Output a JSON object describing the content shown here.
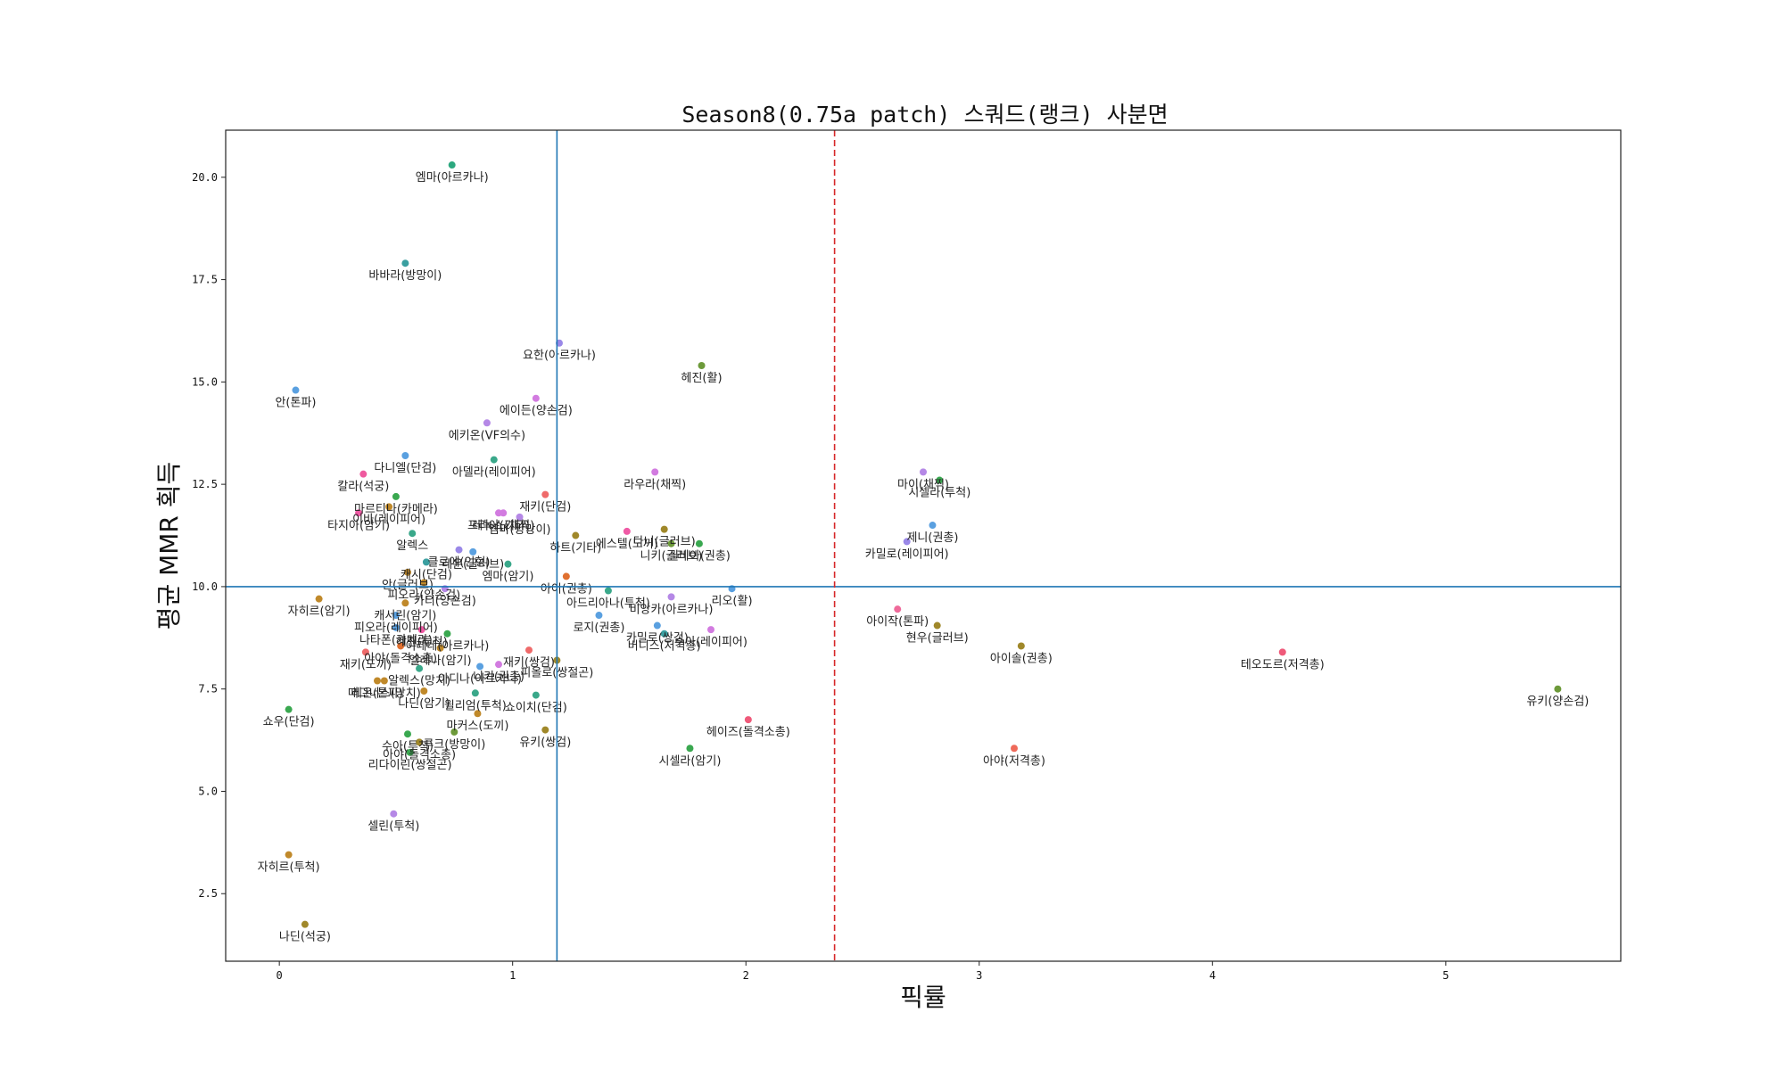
{
  "chart_data": {
    "type": "scatter",
    "title": "Season8(0.75a patch) 스쿼드(랭크) 사분면",
    "xlabel": "픽률",
    "ylabel": "평균 MMR 획득",
    "xlim": [
      -0.23,
      5.75
    ],
    "ylim": [
      0.85,
      21.15
    ],
    "xticks": [
      0,
      1,
      2,
      3,
      4,
      5
    ],
    "yticks": [
      2.5,
      5.0,
      7.5,
      10.0,
      12.5,
      15.0,
      17.5,
      20.0
    ],
    "xtick_labels": [
      "0",
      "1",
      "2",
      "3",
      "4",
      "5"
    ],
    "ytick_labels": [
      "2.5",
      "5.0",
      "7.5",
      "10.0",
      "12.5",
      "15.0",
      "17.5",
      "20.0"
    ],
    "grid": false,
    "reference_lines": {
      "mean_pick_rate_x": 1.19,
      "mean_mmr_y": 10.0,
      "high_pick_threshold_x": 2.38
    },
    "colors": {
      "mean_line": "#1f77b4",
      "threshold_line": "#d62728"
    },
    "points": [
      {
        "label": "엠마(아르카나)",
        "x": 0.74,
        "y": 20.3,
        "color": "#2ca87f"
      },
      {
        "label": "바바라(방망이)",
        "x": 0.54,
        "y": 17.9,
        "color": "#3a9fa0"
      },
      {
        "label": "요한(아르카나)",
        "x": 1.2,
        "y": 15.95,
        "color": "#9a88e8"
      },
      {
        "label": "헤진(활)",
        "x": 1.81,
        "y": 15.4,
        "color": "#6d9a3a"
      },
      {
        "label": "안(톤파)",
        "x": 0.07,
        "y": 14.8,
        "color": "#5aa0e0"
      },
      {
        "label": "에이든(양손검)",
        "x": 1.1,
        "y": 14.6,
        "color": "#d27be0"
      },
      {
        "label": "에키온(VF의수)",
        "x": 0.89,
        "y": 14.0,
        "color": "#b588e6"
      },
      {
        "label": "다니엘(단검)",
        "x": 0.54,
        "y": 13.2,
        "color": "#5aa0e0"
      },
      {
        "label": "아델라(레이피어)",
        "x": 0.92,
        "y": 13.1,
        "color": "#3aa88a"
      },
      {
        "label": "라우라(채찍)",
        "x": 1.61,
        "y": 12.8,
        "color": "#d27be0"
      },
      {
        "label": "칼라(석궁)",
        "x": 0.36,
        "y": 12.75,
        "color": "#ef5a9f"
      },
      {
        "label": "마이(채찍)",
        "x": 2.76,
        "y": 12.8,
        "color": "#b588e6"
      },
      {
        "label": "시셀라(투척)",
        "x": 2.83,
        "y": 12.6,
        "color": "#3aa850"
      },
      {
        "label": "마르티나(카메라)",
        "x": 0.5,
        "y": 12.2,
        "color": "#3aa850"
      },
      {
        "label": "재키(단검)",
        "x": 1.14,
        "y": 12.25,
        "color": "#ef6a6a"
      },
      {
        "label": "이바(레이피어)",
        "x": 0.47,
        "y": 11.95,
        "color": "#c0892a"
      },
      {
        "label": "타지아(암기)",
        "x": 0.34,
        "y": 11.8,
        "color": "#ef5aa5"
      },
      {
        "label": "알렉스",
        "x": 0.57,
        "y": 11.3,
        "color": "#3aa88a"
      },
      {
        "label": "프리야(기타)",
        "x": 0.94,
        "y": 11.8,
        "color": "#d27be0"
      },
      {
        "label": "레녹스(채찍)",
        "x": 0.96,
        "y": 11.8,
        "color": "#d27be0"
      },
      {
        "label": "엠마(방망이)",
        "x": 1.03,
        "y": 11.7,
        "color": "#b588e6"
      },
      {
        "label": "하트(기타)",
        "x": 1.27,
        "y": 11.25,
        "color": "#a0882a"
      },
      {
        "label": "에스텔(도끼)",
        "x": 1.49,
        "y": 11.35,
        "color": "#ef5aa5"
      },
      {
        "label": "다니(글러브)",
        "x": 1.65,
        "y": 11.4,
        "color": "#a0882a"
      },
      {
        "label": "제니(권총)",
        "x": 2.8,
        "y": 11.5,
        "color": "#5aa0e0"
      },
      {
        "label": "카밀로(레이피어)",
        "x": 2.69,
        "y": 11.1,
        "color": "#9a88e8"
      },
      {
        "label": "캐시(단검)",
        "x": 0.63,
        "y": 10.6,
        "color": "#3a9fa0"
      },
      {
        "label": "니키(글러브)",
        "x": 1.68,
        "y": 11.05,
        "color": "#6d9a3a"
      },
      {
        "label": "실비아(권총)",
        "x": 1.8,
        "y": 11.05,
        "color": "#3aa850"
      },
      {
        "label": "클로에(인형)",
        "x": 0.77,
        "y": 10.9,
        "color": "#9a88e8"
      },
      {
        "label": "레온(글러브)",
        "x": 0.83,
        "y": 10.85,
        "color": "#5aa0e0"
      },
      {
        "label": "엠마(암기)",
        "x": 0.98,
        "y": 10.55,
        "color": "#3aa88a"
      },
      {
        "label": "안(글러브)",
        "x": 0.55,
        "y": 10.35,
        "color": "#c0892a"
      },
      {
        "label": "피오라(양손검)",
        "x": 0.62,
        "y": 10.1,
        "color": "#c0892a"
      },
      {
        "label": "아이(권총)",
        "x": 1.23,
        "y": 10.25,
        "color": "#e07030"
      },
      {
        "label": "카티(양손검)",
        "x": 0.71,
        "y": 9.95,
        "color": "#b588e6"
      },
      {
        "label": "리오(활)",
        "x": 1.94,
        "y": 9.95,
        "color": "#5aa0e0"
      },
      {
        "label": "아드리아나(투척)",
        "x": 1.41,
        "y": 9.9,
        "color": "#3aa88a"
      },
      {
        "label": "캐서린(암기)",
        "x": 0.54,
        "y": 9.6,
        "color": "#c0892a"
      },
      {
        "label": "비앙카(아르카나)",
        "x": 1.68,
        "y": 9.75,
        "color": "#b588e6"
      },
      {
        "label": "피오라(레이피어)",
        "x": 0.5,
        "y": 9.3,
        "color": "#5aa0e0"
      },
      {
        "label": "로지(권총)",
        "x": 1.37,
        "y": 9.3,
        "color": "#5aa0e0"
      },
      {
        "label": "자히르(암기)",
        "x": 0.17,
        "y": 9.7,
        "color": "#c0892a"
      },
      {
        "label": "나타폰(카메라)",
        "x": 0.5,
        "y": 9.0,
        "color": "#5aa0e0"
      },
      {
        "label": "혜진(투척)",
        "x": 0.61,
        "y": 8.95,
        "color": "#ef5aa5"
      },
      {
        "label": "이레네(아르카나)",
        "x": 0.72,
        "y": 8.85,
        "color": "#3aa850"
      },
      {
        "label": "카밀로(쌍검)",
        "x": 1.62,
        "y": 9.05,
        "color": "#5aa0e0"
      },
      {
        "label": "버니스(저격총)",
        "x": 1.65,
        "y": 8.85,
        "color": "#3a9fa0"
      },
      {
        "label": "수아(레이피어)",
        "x": 1.85,
        "y": 8.95,
        "color": "#d27be0"
      },
      {
        "label": "아이작(톤파)",
        "x": 2.65,
        "y": 9.45,
        "color": "#ef6a9a"
      },
      {
        "label": "현우(글러브)",
        "x": 2.82,
        "y": 9.05,
        "color": "#a0882a"
      },
      {
        "label": "아이솔(권총)",
        "x": 3.18,
        "y": 8.55,
        "color": "#a0882a"
      },
      {
        "label": "테오도르(저격총)",
        "x": 4.3,
        "y": 8.4,
        "color": "#ef5a7a"
      },
      {
        "label": "유키(양손검)",
        "x": 5.48,
        "y": 7.5,
        "color": "#6d9a3a"
      },
      {
        "label": "아야(돌격소총)",
        "x": 0.52,
        "y": 8.55,
        "color": "#e07030"
      },
      {
        "label": "엘레나(암기)",
        "x": 0.69,
        "y": 8.5,
        "color": "#c0892a"
      },
      {
        "label": "재키(도끼)",
        "x": 0.37,
        "y": 8.4,
        "color": "#ef6a6a"
      },
      {
        "label": "재키(쌍검)",
        "x": 1.07,
        "y": 8.45,
        "color": "#ef6a6a"
      },
      {
        "label": "니키(권총)",
        "x": 0.94,
        "y": 8.1,
        "color": "#d27be0"
      },
      {
        "label": "피올로(쌍절곤)",
        "x": 1.19,
        "y": 8.2,
        "color": "#a0882a"
      },
      {
        "label": "알렉스(망치)",
        "x": 0.6,
        "y": 8.0,
        "color": "#3aa88a"
      },
      {
        "label": "아디나(아르카나)",
        "x": 0.86,
        "y": 8.05,
        "color": "#5aa0e0"
      },
      {
        "label": "레온(톤파)",
        "x": 0.42,
        "y": 7.7,
        "color": "#c0892a"
      },
      {
        "label": "매그너스(망치)",
        "x": 0.45,
        "y": 7.7,
        "color": "#c0892a"
      },
      {
        "label": "나딘(암기)",
        "x": 0.62,
        "y": 7.45,
        "color": "#c0892a"
      },
      {
        "label": "쇼이치(단검)",
        "x": 1.1,
        "y": 7.35,
        "color": "#3aa88a"
      },
      {
        "label": "쇼우(단검)",
        "x": 0.04,
        "y": 7.0,
        "color": "#3aa850"
      },
      {
        "label": "윌리엄(투척)",
        "x": 0.84,
        "y": 7.4,
        "color": "#3aa88a"
      },
      {
        "label": "마커스(도끼)",
        "x": 0.85,
        "y": 6.9,
        "color": "#c0892a"
      },
      {
        "label": "루크(방망이)",
        "x": 0.75,
        "y": 6.45,
        "color": "#6d9a3a"
      },
      {
        "label": "유키(쌍검)",
        "x": 1.14,
        "y": 6.5,
        "color": "#a0882a"
      },
      {
        "label": "헤이즈(돌격소총)",
        "x": 2.01,
        "y": 6.75,
        "color": "#ef5a7a"
      },
      {
        "label": "수아(투척)",
        "x": 0.55,
        "y": 6.4,
        "color": "#3aa850"
      },
      {
        "label": "아야(돌격소총)",
        "x": 0.6,
        "y": 6.2,
        "color": "#a0882a"
      },
      {
        "label": "리다이린(쌍절곤)",
        "x": 0.56,
        "y": 5.95,
        "color": "#3aa850"
      },
      {
        "label": "시셀라(암기)",
        "x": 1.76,
        "y": 6.05,
        "color": "#3aa850"
      },
      {
        "label": "아야(저격총)",
        "x": 3.15,
        "y": 6.05,
        "color": "#ef6a5a"
      },
      {
        "label": "셀린(투척)",
        "x": 0.49,
        "y": 4.45,
        "color": "#b588e6"
      },
      {
        "label": "자히르(투척)",
        "x": 0.04,
        "y": 3.45,
        "color": "#c0892a"
      },
      {
        "label": "나딘(석궁)",
        "x": 0.11,
        "y": 1.75,
        "color": "#a0882a"
      }
    ]
  }
}
